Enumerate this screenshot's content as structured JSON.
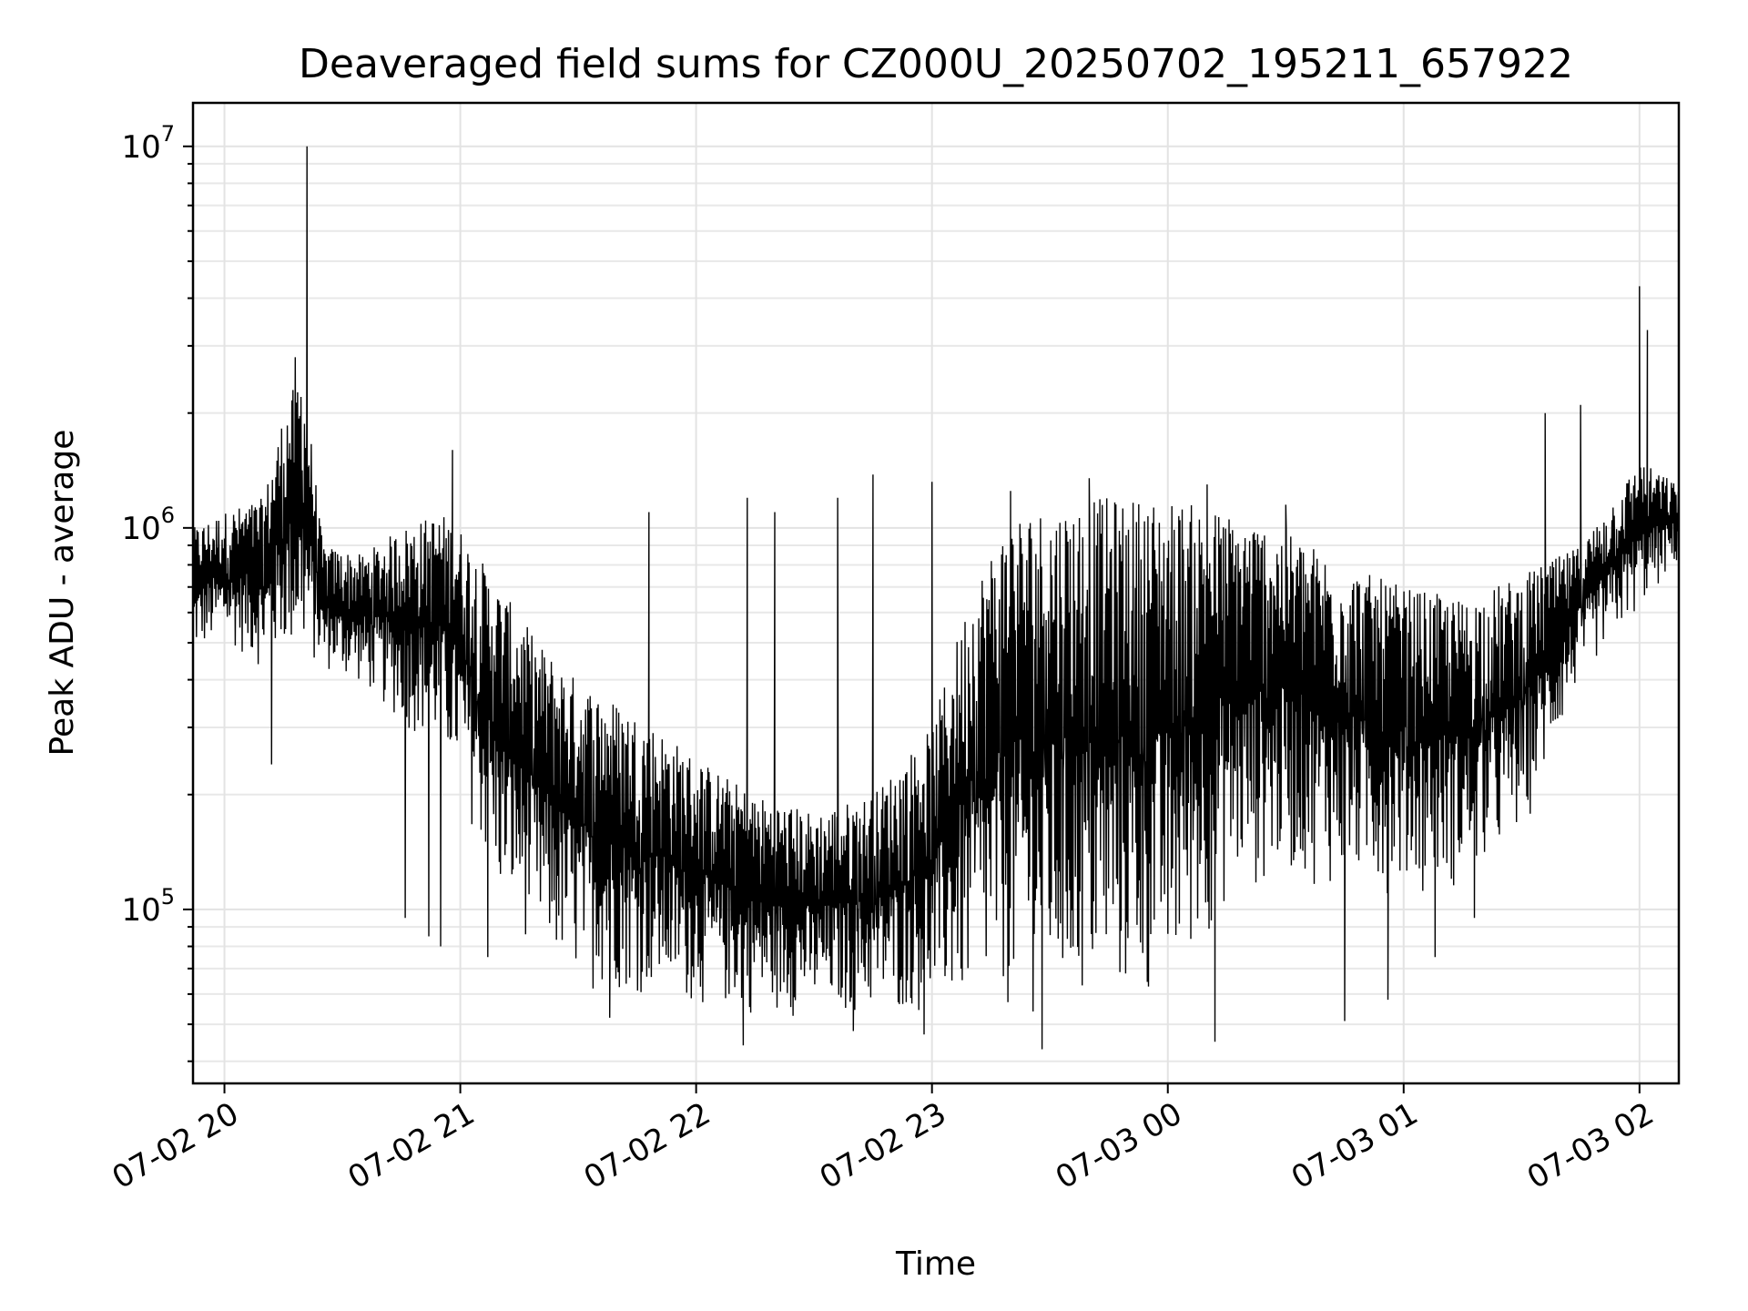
{
  "chart_data": {
    "type": "line",
    "title": "Deaveraged field sums for CZ000U_20250702_195211_657922",
    "xlabel": "Time",
    "ylabel": "Peak ADU - average",
    "x_range": [
      "2025-07-02 19:52",
      "2025-07-03 02:10"
    ],
    "y_scale": "log",
    "ylim": [
      35000,
      13000000
    ],
    "x_ticks": [
      "07-02 20",
      "07-02 21",
      "07-02 22",
      "07-02 23",
      "07-03 00",
      "07-03 01",
      "07-03 02"
    ],
    "y_ticks": [
      {
        "base": "10",
        "exp": "5",
        "value": 100000
      },
      {
        "base": "10",
        "exp": "6",
        "value": 1000000
      },
      {
        "base": "10",
        "exp": "7",
        "value": 10000000
      }
    ],
    "grid": true,
    "line_color": "#000000",
    "series": [
      {
        "values_envelope": [
          {
            "x": "2025-07-02 19:52",
            "low": 450000,
            "high": 1000000
          },
          {
            "x": "2025-07-02 20:00",
            "low": 500000,
            "high": 1100000
          },
          {
            "x": "2025-07-02 20:10",
            "low": 420000,
            "high": 1200000
          },
          {
            "x": "2025-07-02 20:15",
            "low": 450000,
            "high": 2000000
          },
          {
            "x": "2025-07-02 20:20",
            "low": 430000,
            "high": 2700000
          },
          {
            "x": "2025-07-02 20:25",
            "low": 420000,
            "high": 900000
          },
          {
            "x": "2025-07-02 20:35",
            "low": 380000,
            "high": 850000
          },
          {
            "x": "2025-07-02 20:45",
            "low": 300000,
            "high": 1000000
          },
          {
            "x": "2025-07-02 20:55",
            "low": 250000,
            "high": 1100000
          },
          {
            "x": "2025-07-02 21:00",
            "low": 200000,
            "high": 1000000
          },
          {
            "x": "2025-07-02 21:10",
            "low": 100000,
            "high": 700000
          },
          {
            "x": "2025-07-02 21:20",
            "low": 75000,
            "high": 500000
          },
          {
            "x": "2025-07-02 21:30",
            "low": 62000,
            "high": 400000
          },
          {
            "x": "2025-07-02 21:40",
            "low": 60000,
            "high": 350000
          },
          {
            "x": "2025-07-02 21:50",
            "low": 57000,
            "high": 300000
          },
          {
            "x": "2025-07-02 22:00",
            "low": 55000,
            "high": 250000
          },
          {
            "x": "2025-07-02 22:15",
            "low": 52000,
            "high": 200000
          },
          {
            "x": "2025-07-02 22:30",
            "low": 52000,
            "high": 180000
          },
          {
            "x": "2025-07-02 22:45",
            "low": 52000,
            "high": 200000
          },
          {
            "x": "2025-07-02 23:00",
            "low": 52000,
            "high": 300000
          },
          {
            "x": "2025-07-02 23:10",
            "low": 52000,
            "high": 700000
          },
          {
            "x": "2025-07-02 23:20",
            "low": 52000,
            "high": 1100000
          },
          {
            "x": "2025-07-02 23:40",
            "low": 52000,
            "high": 1200000
          },
          {
            "x": "2025-07-03 00:00",
            "low": 55000,
            "high": 1200000
          },
          {
            "x": "2025-07-03 00:15",
            "low": 100000,
            "high": 1100000
          },
          {
            "x": "2025-07-03 00:30",
            "low": 120000,
            "high": 1000000
          },
          {
            "x": "2025-07-03 00:45",
            "low": 110000,
            "high": 800000
          },
          {
            "x": "2025-07-03 01:00",
            "low": 110000,
            "high": 700000
          },
          {
            "x": "2025-07-03 01:15",
            "low": 110000,
            "high": 650000
          },
          {
            "x": "2025-07-03 01:30",
            "low": 150000,
            "high": 750000
          },
          {
            "x": "2025-07-03 01:45",
            "low": 400000,
            "high": 900000
          },
          {
            "x": "2025-07-03 02:00",
            "low": 600000,
            "high": 1500000
          },
          {
            "x": "2025-07-03 02:10",
            "low": 800000,
            "high": 1300000
          }
        ],
        "spikes": [
          {
            "x": "2025-07-02 20:21",
            "y": 10000000
          },
          {
            "x": "2025-07-03 02:00",
            "y": 4300000
          },
          {
            "x": "2025-07-03 02:02",
            "y": 3300000
          },
          {
            "x": "2025-07-02 20:18",
            "y": 2800000
          },
          {
            "x": "2025-07-03 01:45",
            "y": 2100000
          },
          {
            "x": "2025-07-03 01:36",
            "y": 2000000
          },
          {
            "x": "2025-07-02 20:58",
            "y": 1600000
          },
          {
            "x": "2025-07-02 22:45",
            "y": 1380000
          },
          {
            "x": "2025-07-02 23:40",
            "y": 1350000
          },
          {
            "x": "2025-07-02 21:48",
            "y": 1100000
          },
          {
            "x": "2025-07-02 22:36",
            "y": 1200000
          },
          {
            "x": "2025-07-02 23:00",
            "y": 1320000
          },
          {
            "x": "2025-07-02 22:13",
            "y": 1200000
          },
          {
            "x": "2025-07-02 22:20",
            "y": 1100000
          },
          {
            "x": "2025-07-02 23:20",
            "y": 1250000
          },
          {
            "x": "2025-07-03 00:10",
            "y": 1300000
          },
          {
            "x": "2025-07-03 00:30",
            "y": 1150000
          },
          {
            "x": "2025-07-02 22:58",
            "y": 47000
          },
          {
            "x": "2025-07-02 23:28",
            "y": 43000
          },
          {
            "x": "2025-07-03 00:12",
            "y": 45000
          },
          {
            "x": "2025-07-02 22:12",
            "y": 44000
          },
          {
            "x": "2025-07-03 00:45",
            "y": 51000
          },
          {
            "x": "2025-07-02 21:38",
            "y": 52000
          },
          {
            "x": "2025-07-02 22:40",
            "y": 48000
          },
          {
            "x": "2025-07-02 20:12",
            "y": 240000
          },
          {
            "x": "2025-07-02 20:46",
            "y": 95000
          },
          {
            "x": "2025-07-02 20:52",
            "y": 85000
          },
          {
            "x": "2025-07-02 20:55",
            "y": 80000
          },
          {
            "x": "2025-07-02 21:07",
            "y": 75000
          },
          {
            "x": "2025-07-03 00:56",
            "y": 58000
          },
          {
            "x": "2025-07-03 01:08",
            "y": 75000
          },
          {
            "x": "2025-07-03 01:18",
            "y": 95000
          }
        ]
      }
    ]
  }
}
